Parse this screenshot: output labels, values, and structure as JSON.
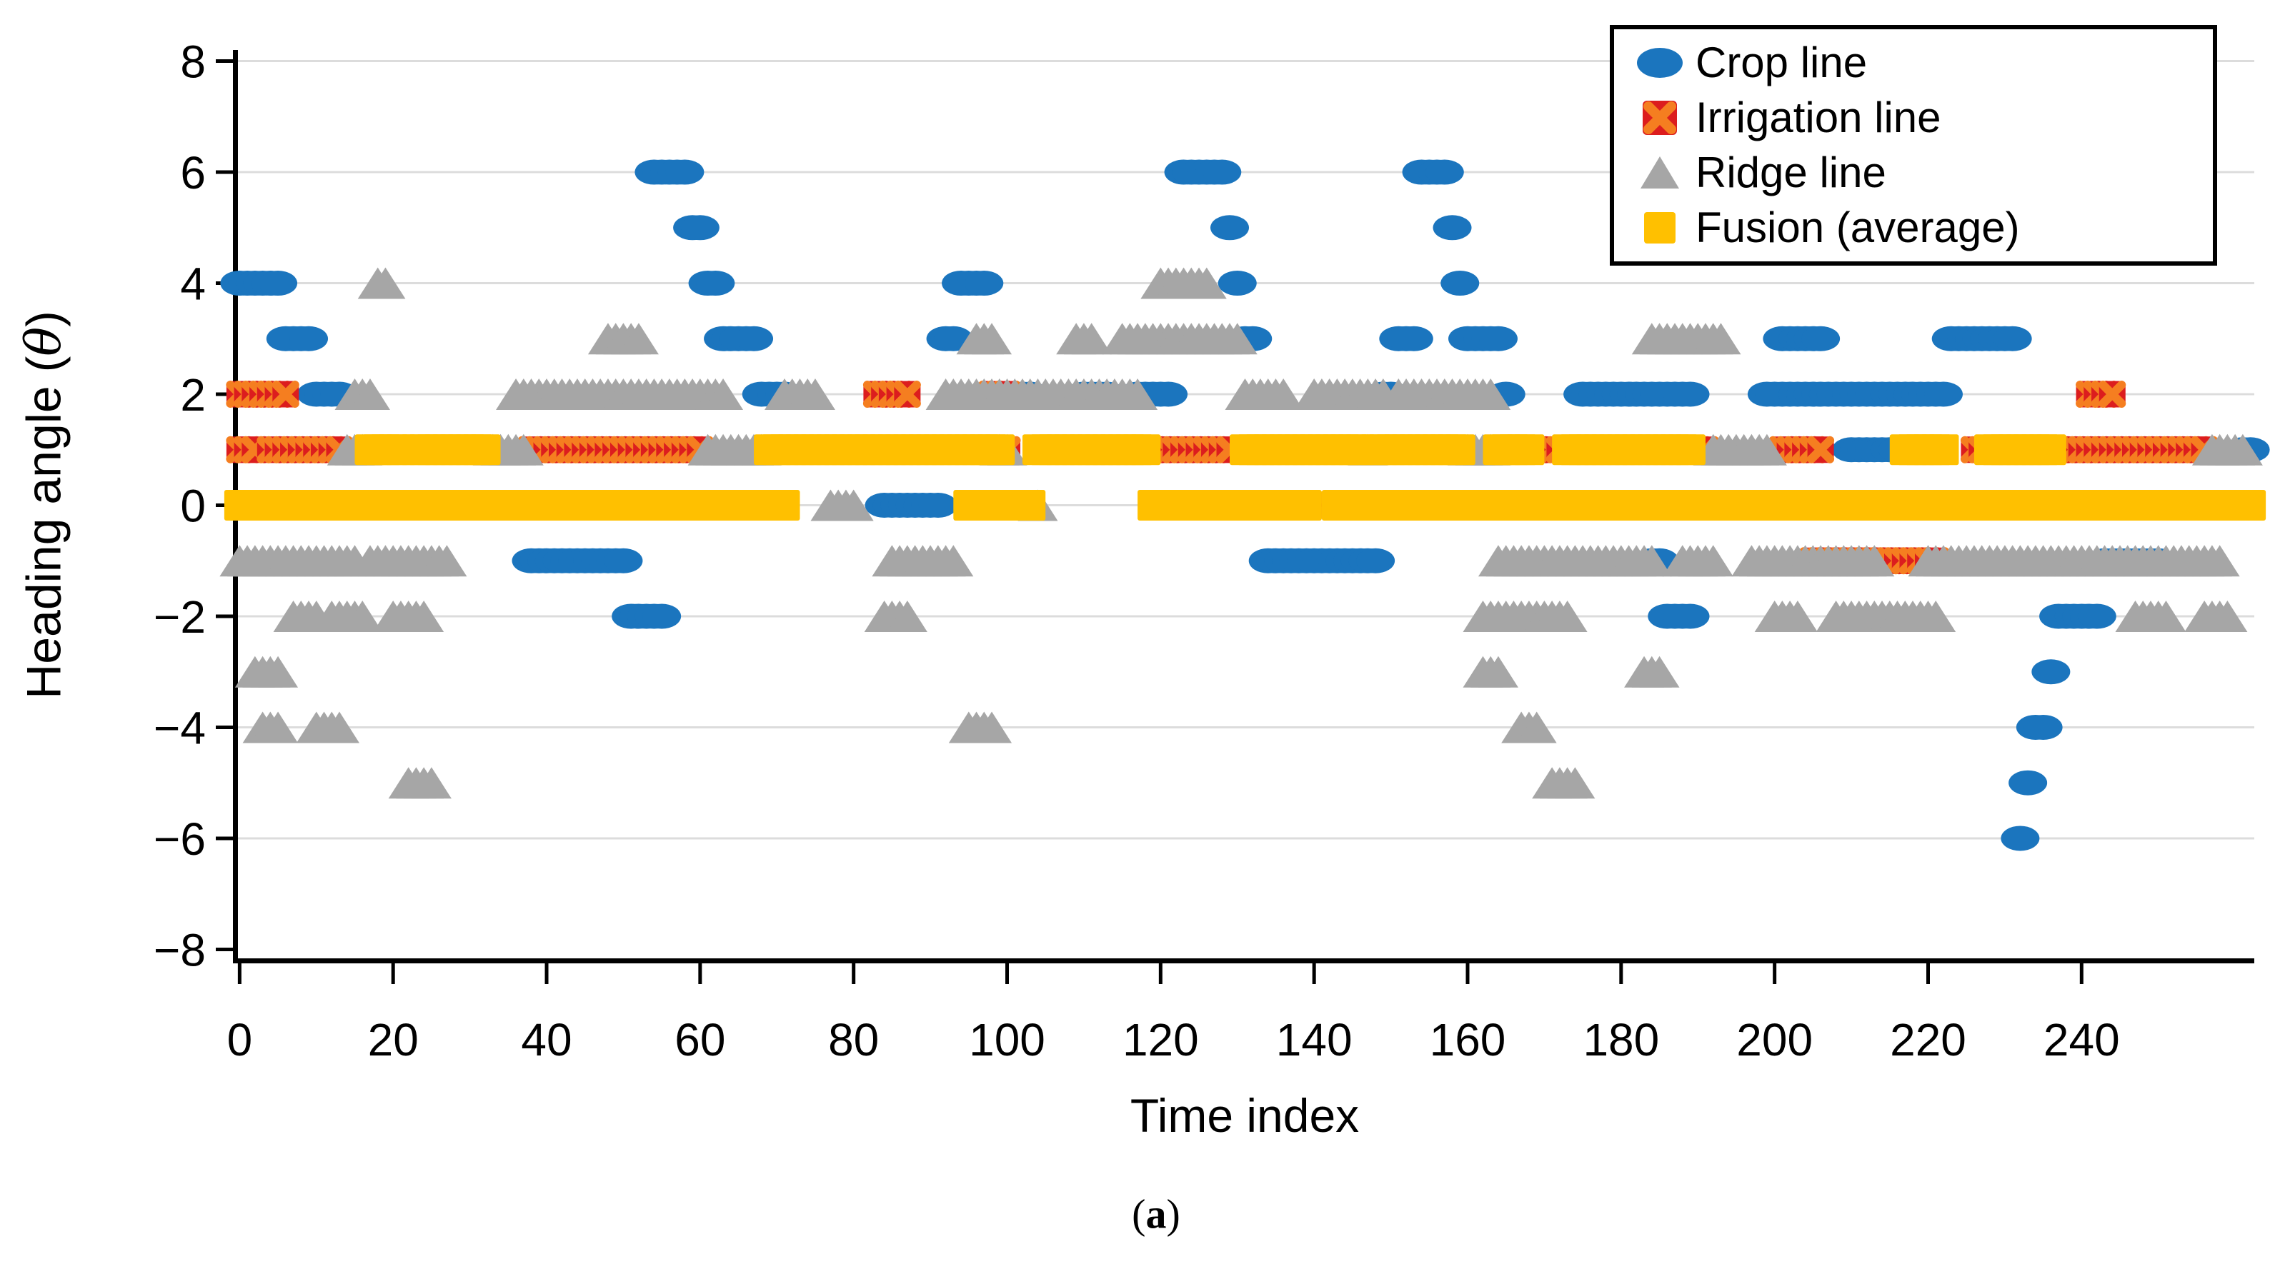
{
  "figure": {
    "caption_open": "(",
    "caption_letter": "a",
    "caption_close": ")"
  },
  "axes": {
    "xlabel": "Time index",
    "ylabel": "Heading angle (θ)",
    "ylabel_prefix": "Heading angle (",
    "ylabel_theta": "θ",
    "ylabel_suffix": ")",
    "xtick_labels": [
      "0",
      "20",
      "40",
      "60",
      "80",
      "100",
      "120",
      "140",
      "160",
      "180",
      "200",
      "220",
      "240"
    ],
    "ytick_labels": [
      "8",
      "6",
      "4",
      "2",
      "0",
      "−2",
      "−4",
      "−6",
      "−8"
    ]
  },
  "legend": {
    "items": [
      {
        "id": "crop",
        "label": "Crop line",
        "marker": "ellipse"
      },
      {
        "id": "irrigation",
        "label": "Irrigation line",
        "marker": "x-square"
      },
      {
        "id": "ridge",
        "label": "Ridge line",
        "marker": "triangle"
      },
      {
        "id": "fusion",
        "label": "Fusion (average)",
        "marker": "square"
      }
    ]
  },
  "colors": {
    "crop_blue": "#1B75BE",
    "irrigation_red": "#DC1D1E",
    "irrigation_x_orange": "#F57E20",
    "ridge_gray": "#A6A6A6",
    "fusion_yellow": "#FFC000",
    "gridline": "#DCDCDC",
    "axis": "#000000"
  },
  "chart_data": {
    "type": "scatter",
    "title": "",
    "xlabel": "Time index",
    "ylabel": "Heading angle (θ)",
    "xlim": [
      -0.5,
      262.5
    ],
    "ylim": [
      -8.2,
      8.2
    ],
    "xticks": [
      0,
      20,
      40,
      60,
      80,
      100,
      120,
      140,
      160,
      180,
      200,
      220,
      240
    ],
    "yticks": [
      8,
      6,
      4,
      2,
      0,
      -2,
      -4,
      -6,
      -8
    ],
    "grid": "horizontal",
    "legend_position": "top-right",
    "run_encoding": "runs are [startTimeIndex, endTimeIndex, headingAngle]; one marker per integer time index, inclusive",
    "series": [
      {
        "name": "Crop line",
        "marker": "ellipse",
        "color": "#1B75BE",
        "runs": [
          [
            0,
            5,
            4
          ],
          [
            6,
            9,
            3
          ],
          [
            10,
            13,
            2
          ],
          [
            38,
            50,
            -1
          ],
          [
            51,
            55,
            -2
          ],
          [
            54,
            58,
            6
          ],
          [
            59,
            60,
            5
          ],
          [
            61,
            62,
            4
          ],
          [
            63,
            67,
            3
          ],
          [
            68,
            71,
            2
          ],
          [
            84,
            91,
            0
          ],
          [
            92,
            93,
            3
          ],
          [
            94,
            97,
            4
          ],
          [
            98,
            99,
            2
          ],
          [
            102,
            103,
            2
          ],
          [
            110,
            113,
            2
          ],
          [
            117,
            121,
            2
          ],
          [
            123,
            128,
            6
          ],
          [
            129,
            129,
            5
          ],
          [
            130,
            130,
            4
          ],
          [
            131,
            132,
            3
          ],
          [
            134,
            148,
            -1
          ],
          [
            149,
            150,
            2
          ],
          [
            151,
            153,
            3
          ],
          [
            154,
            157,
            6
          ],
          [
            158,
            158,
            5
          ],
          [
            159,
            159,
            4
          ],
          [
            160,
            164,
            3
          ],
          [
            165,
            165,
            2
          ],
          [
            173,
            173,
            1
          ],
          [
            175,
            189,
            2
          ],
          [
            184,
            185,
            -1
          ],
          [
            186,
            189,
            -2
          ],
          [
            199,
            222,
            2
          ],
          [
            201,
            206,
            3
          ],
          [
            210,
            216,
            1
          ],
          [
            223,
            231,
            3
          ],
          [
            232,
            232,
            -6
          ],
          [
            233,
            233,
            -5
          ],
          [
            234,
            235,
            -4
          ],
          [
            236,
            236,
            -3
          ],
          [
            237,
            242,
            -2
          ],
          [
            243,
            250,
            -1
          ],
          [
            261,
            262,
            1
          ]
        ]
      },
      {
        "name": "Irrigation line",
        "marker": "x-square",
        "color": "#DC1D1E",
        "x_color": "#F57E20",
        "runs": [
          [
            0,
            6,
            2
          ],
          [
            0,
            2,
            1
          ],
          [
            4,
            13,
            1
          ],
          [
            22,
            22,
            1
          ],
          [
            38,
            60,
            1
          ],
          [
            83,
            87,
            2
          ],
          [
            98,
            100,
            2
          ],
          [
            100,
            100,
            1
          ],
          [
            119,
            129,
            1
          ],
          [
            139,
            142,
            0
          ],
          [
            169,
            172,
            1
          ],
          [
            178,
            178,
            1
          ],
          [
            190,
            191,
            1
          ],
          [
            201,
            206,
            1
          ],
          [
            205,
            221,
            -1
          ],
          [
            226,
            227,
            1
          ],
          [
            237,
            256,
            1
          ],
          [
            241,
            244,
            2
          ]
        ]
      },
      {
        "name": "Ridge line",
        "marker": "triangle",
        "color": "#A6A6A6",
        "runs": [
          [
            0,
            3,
            -1
          ],
          [
            4,
            10,
            -1
          ],
          [
            11,
            15,
            -1
          ],
          [
            17,
            27,
            -1
          ],
          [
            2,
            5,
            -3
          ],
          [
            3,
            5,
            -4
          ],
          [
            7,
            10,
            -2
          ],
          [
            10,
            13,
            -4
          ],
          [
            12,
            16,
            -2
          ],
          [
            14,
            16,
            1
          ],
          [
            15,
            17,
            2
          ],
          [
            18,
            19,
            4
          ],
          [
            20,
            24,
            -2
          ],
          [
            22,
            25,
            -5
          ],
          [
            33,
            37,
            1
          ],
          [
            36,
            63,
            2
          ],
          [
            48,
            52,
            3
          ],
          [
            61,
            68,
            1
          ],
          [
            71,
            75,
            2
          ],
          [
            77,
            80,
            0
          ],
          [
            84,
            87,
            -2
          ],
          [
            85,
            93,
            -1
          ],
          [
            92,
            117,
            2
          ],
          [
            95,
            98,
            -4
          ],
          [
            96,
            98,
            3
          ],
          [
            99,
            100,
            1
          ],
          [
            104,
            104,
            0
          ],
          [
            109,
            111,
            3
          ],
          [
            115,
            130,
            3
          ],
          [
            120,
            126,
            4
          ],
          [
            131,
            136,
            2
          ],
          [
            140,
            149,
            2
          ],
          [
            147,
            147,
            1
          ],
          [
            151,
            163,
            2
          ],
          [
            160,
            163,
            1
          ],
          [
            162,
            173,
            -2
          ],
          [
            162,
            164,
            -3
          ],
          [
            164,
            184,
            -1
          ],
          [
            167,
            169,
            -4
          ],
          [
            171,
            174,
            -5
          ],
          [
            183,
            185,
            -3
          ],
          [
            184,
            193,
            3
          ],
          [
            188,
            192,
            -1
          ],
          [
            192,
            199,
            1
          ],
          [
            197,
            213,
            -1
          ],
          [
            200,
            203,
            -2
          ],
          [
            208,
            221,
            -2
          ],
          [
            220,
            258,
            -1
          ],
          [
            247,
            251,
            -2
          ],
          [
            256,
            259,
            -2
          ],
          [
            257,
            261,
            1
          ]
        ]
      },
      {
        "name": "Fusion (average)",
        "marker": "square",
        "color": "#FFC000",
        "runs": [
          [
            0,
            71,
            0
          ],
          [
            17,
            21,
            1
          ],
          [
            23,
            32,
            1
          ],
          [
            69,
            99,
            1
          ],
          [
            95,
            103,
            0
          ],
          [
            104,
            118,
            1
          ],
          [
            119,
            139,
            0
          ],
          [
            131,
            146,
            1
          ],
          [
            143,
            262,
            0
          ],
          [
            148,
            159,
            1
          ],
          [
            164,
            168,
            1
          ],
          [
            173,
            189,
            1
          ],
          [
            217,
            222,
            1
          ],
          [
            228,
            236,
            1
          ]
        ]
      }
    ]
  }
}
